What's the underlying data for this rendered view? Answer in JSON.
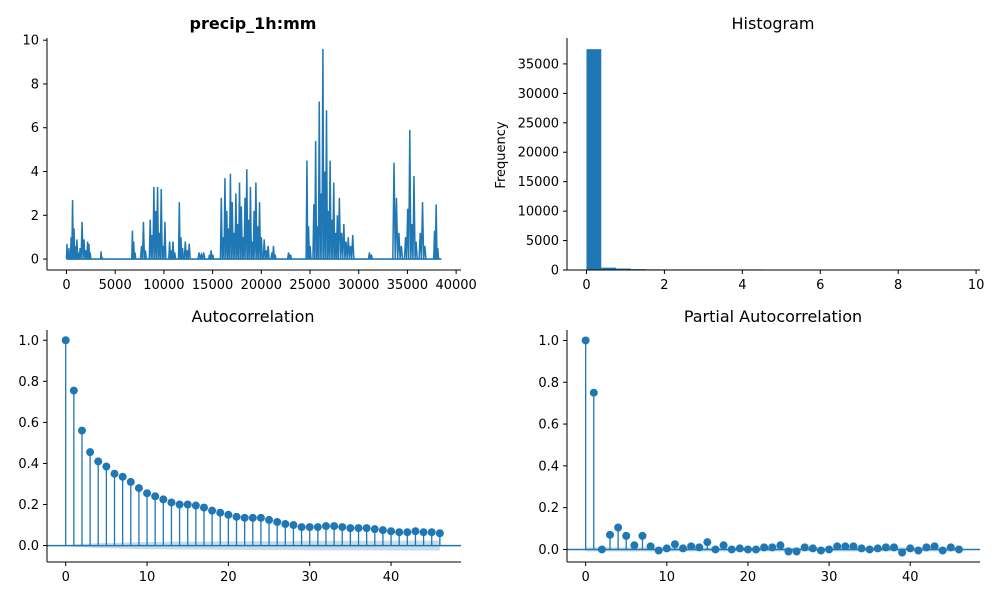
{
  "colors": {
    "series": "#1f77b4",
    "band": "#1f77b4"
  },
  "chart_data": [
    {
      "id": "timeseries",
      "type": "line",
      "title": "precip_1h:mm",
      "title_bold": true,
      "xlabel": "",
      "ylabel": "",
      "xlim": [
        -2000,
        40500
      ],
      "ylim": [
        -0.5,
        10.1
      ],
      "xticks": [
        0,
        5000,
        10000,
        15000,
        20000,
        25000,
        30000,
        35000,
        40000
      ],
      "yticks": [
        0,
        2,
        4,
        6,
        8,
        10
      ],
      "bursts": [
        {
          "x": 0,
          "w": 400,
          "peaks": [
            0.7,
            0.3,
            0.5,
            0.2
          ]
        },
        {
          "x": 400,
          "w": 900,
          "peaks": [
            1.0,
            2.7,
            1.4,
            0.6,
            0.9,
            0.3
          ]
        },
        {
          "x": 1300,
          "w": 800,
          "peaks": [
            0.5,
            1.7,
            0.9,
            0.4
          ]
        },
        {
          "x": 2100,
          "w": 400,
          "peaks": [
            0.8,
            0.7,
            0.3
          ]
        },
        {
          "x": 3500,
          "w": 200,
          "peaks": [
            0.35,
            0.1
          ]
        },
        {
          "x": 6700,
          "w": 400,
          "peaks": [
            1.3,
            0.8,
            0.3
          ]
        },
        {
          "x": 7600,
          "w": 600,
          "peaks": [
            0.6,
            1.7,
            0.4
          ]
        },
        {
          "x": 8500,
          "w": 1700,
          "peaks": [
            1.8,
            1.1,
            3.3,
            2.2,
            3.3,
            1.2,
            3.2,
            0.6,
            1.7
          ]
        },
        {
          "x": 10500,
          "w": 700,
          "peaks": [
            0.8,
            0.4,
            0.8,
            0.3
          ]
        },
        {
          "x": 11500,
          "w": 500,
          "peaks": [
            2.6,
            1.0,
            0.5
          ]
        },
        {
          "x": 12100,
          "w": 600,
          "peaks": [
            0.8,
            0.4,
            0.7
          ]
        },
        {
          "x": 13500,
          "w": 700,
          "peaks": [
            0.3,
            0.2,
            0.3
          ]
        },
        {
          "x": 14600,
          "w": 500,
          "peaks": [
            0.2,
            0.4,
            0.2
          ]
        },
        {
          "x": 15800,
          "w": 4300,
          "peaks": [
            2.8,
            1.0,
            3.7,
            2.2,
            1.4,
            3.9,
            2.6,
            1.2,
            3.0,
            1.6,
            3.5,
            2.4,
            1.0,
            2.8,
            4.1,
            1.8,
            3.3,
            0.8,
            2.2,
            3.5,
            1.5,
            2.6,
            1.0
          ]
        },
        {
          "x": 20200,
          "w": 600,
          "peaks": [
            0.9,
            0.4,
            0.6
          ]
        },
        {
          "x": 21000,
          "w": 500,
          "peaks": [
            0.3,
            0.6,
            0.2
          ]
        },
        {
          "x": 22700,
          "w": 400,
          "peaks": [
            0.3,
            0.2
          ]
        },
        {
          "x": 24600,
          "w": 500,
          "peaks": [
            4.5,
            1.5,
            0.6
          ]
        },
        {
          "x": 25300,
          "w": 2600,
          "peaks": [
            2.5,
            5.4,
            1.5,
            7.2,
            3.0,
            9.6,
            4.0,
            6.8,
            2.2,
            4.5,
            1.8,
            3.5,
            1.2,
            2.0
          ]
        },
        {
          "x": 27900,
          "w": 1600,
          "peaks": [
            2.8,
            1.2,
            1.6,
            0.8,
            1.0,
            0.6,
            1.1
          ]
        },
        {
          "x": 31000,
          "w": 400,
          "peaks": [
            0.3,
            0.2
          ]
        },
        {
          "x": 33500,
          "w": 1000,
          "peaks": [
            4.4,
            2.8,
            1.2,
            0.6
          ]
        },
        {
          "x": 34700,
          "w": 1300,
          "peaks": [
            1.0,
            2.3,
            5.9,
            1.6,
            3.8,
            0.8
          ]
        },
        {
          "x": 36200,
          "w": 700,
          "peaks": [
            1.2,
            2.6,
            0.6
          ]
        },
        {
          "x": 37700,
          "w": 500,
          "peaks": [
            1.3,
            2.5,
            0.5
          ]
        }
      ]
    },
    {
      "id": "histogram",
      "type": "bar",
      "title": "Histogram",
      "xlabel": "",
      "ylabel": "Frequency",
      "xlim": [
        -0.5,
        10.1
      ],
      "ylim": [
        0,
        39400
      ],
      "xticks": [
        0,
        2,
        4,
        6,
        8,
        10
      ],
      "yticks": [
        0,
        5000,
        10000,
        15000,
        20000,
        25000,
        30000,
        35000
      ],
      "bin_width": 0.38,
      "bins": [
        {
          "x": 0.0,
          "count": 37500
        },
        {
          "x": 0.38,
          "count": 400
        },
        {
          "x": 0.76,
          "count": 250
        },
        {
          "x": 1.14,
          "count": 150
        },
        {
          "x": 1.52,
          "count": 110
        },
        {
          "x": 1.9,
          "count": 70
        },
        {
          "x": 2.28,
          "count": 25
        },
        {
          "x": 2.66,
          "count": 15
        },
        {
          "x": 3.04,
          "count": 10
        },
        {
          "x": 3.42,
          "count": 6
        },
        {
          "x": 3.8,
          "count": 4
        },
        {
          "x": 4.18,
          "count": 3
        }
      ]
    },
    {
      "id": "acf",
      "type": "stem",
      "title": "Autocorrelation",
      "xlabel": "",
      "ylabel": "",
      "xlim": [
        -2.3,
        48.6
      ],
      "ylim": [
        -0.08,
        1.05
      ],
      "xticks": [
        0,
        10,
        20,
        30,
        40
      ],
      "yticks": [
        0.0,
        0.2,
        0.4,
        0.6,
        0.8,
        1.0
      ],
      "lags": [
        0,
        1,
        2,
        3,
        4,
        5,
        6,
        7,
        8,
        9,
        10,
        11,
        12,
        13,
        14,
        15,
        16,
        17,
        18,
        19,
        20,
        21,
        22,
        23,
        24,
        25,
        26,
        27,
        28,
        29,
        30,
        31,
        32,
        33,
        34,
        35,
        36,
        37,
        38,
        39,
        40,
        41,
        42,
        43,
        44,
        45,
        46
      ],
      "values": [
        1.0,
        0.755,
        0.56,
        0.455,
        0.41,
        0.385,
        0.35,
        0.335,
        0.31,
        0.28,
        0.255,
        0.24,
        0.225,
        0.21,
        0.2,
        0.2,
        0.195,
        0.185,
        0.17,
        0.16,
        0.15,
        0.14,
        0.135,
        0.135,
        0.135,
        0.125,
        0.115,
        0.105,
        0.1,
        0.09,
        0.09,
        0.09,
        0.095,
        0.095,
        0.09,
        0.085,
        0.085,
        0.085,
        0.08,
        0.075,
        0.07,
        0.065,
        0.065,
        0.07,
        0.065,
        0.065,
        0.06
      ],
      "confidence_band": [
        0.0,
        0.005,
        0.008,
        0.01,
        0.012,
        0.013,
        0.014,
        0.015,
        0.016,
        0.017,
        0.017,
        0.018,
        0.018,
        0.019,
        0.019,
        0.019,
        0.02,
        0.02,
        0.02,
        0.021,
        0.021,
        0.021,
        0.021,
        0.022,
        0.022,
        0.022,
        0.022,
        0.022,
        0.022,
        0.023,
        0.023,
        0.023,
        0.023,
        0.023,
        0.023,
        0.023,
        0.023,
        0.023,
        0.023,
        0.024,
        0.024,
        0.024,
        0.024,
        0.024,
        0.024,
        0.024,
        0.024
      ]
    },
    {
      "id": "pacf",
      "type": "stem",
      "title": "Partial Autocorrelation",
      "xlabel": "",
      "ylabel": "",
      "xlim": [
        -2.3,
        48.6
      ],
      "ylim": [
        -0.06,
        1.05
      ],
      "xticks": [
        0,
        10,
        20,
        30,
        40
      ],
      "yticks": [
        0.0,
        0.2,
        0.4,
        0.6,
        0.8,
        1.0
      ],
      "lags": [
        0,
        1,
        2,
        3,
        4,
        5,
        6,
        7,
        8,
        9,
        10,
        11,
        12,
        13,
        14,
        15,
        16,
        17,
        18,
        19,
        20,
        21,
        22,
        23,
        24,
        25,
        26,
        27,
        28,
        29,
        30,
        31,
        32,
        33,
        34,
        35,
        36,
        37,
        38,
        39,
        40,
        41,
        42,
        43,
        44,
        45,
        46
      ],
      "values": [
        1.0,
        0.75,
        0.0,
        0.07,
        0.105,
        0.065,
        0.02,
        0.065,
        0.015,
        -0.005,
        0.005,
        0.025,
        0.005,
        0.015,
        0.01,
        0.035,
        0.0,
        0.02,
        0.0,
        0.005,
        0.0,
        0.0,
        0.01,
        0.01,
        0.02,
        -0.01,
        -0.01,
        0.01,
        0.005,
        -0.005,
        0.0,
        0.015,
        0.015,
        0.015,
        0.005,
        0.0,
        0.005,
        0.01,
        0.01,
        -0.015,
        0.005,
        -0.005,
        0.01,
        0.015,
        -0.005,
        0.01,
        0.0
      ],
      "confidence_band": [
        0.01,
        0.01,
        0.01,
        0.01,
        0.01,
        0.01,
        0.01,
        0.01,
        0.01,
        0.01,
        0.01,
        0.01,
        0.01,
        0.01,
        0.01,
        0.01,
        0.01,
        0.01,
        0.01,
        0.01,
        0.01,
        0.01,
        0.01,
        0.01,
        0.01,
        0.01,
        0.01,
        0.01,
        0.01,
        0.01,
        0.01,
        0.01,
        0.01,
        0.01,
        0.01,
        0.01,
        0.01,
        0.01,
        0.01,
        0.01,
        0.01,
        0.01,
        0.01,
        0.01,
        0.01,
        0.01,
        0.01
      ]
    }
  ]
}
